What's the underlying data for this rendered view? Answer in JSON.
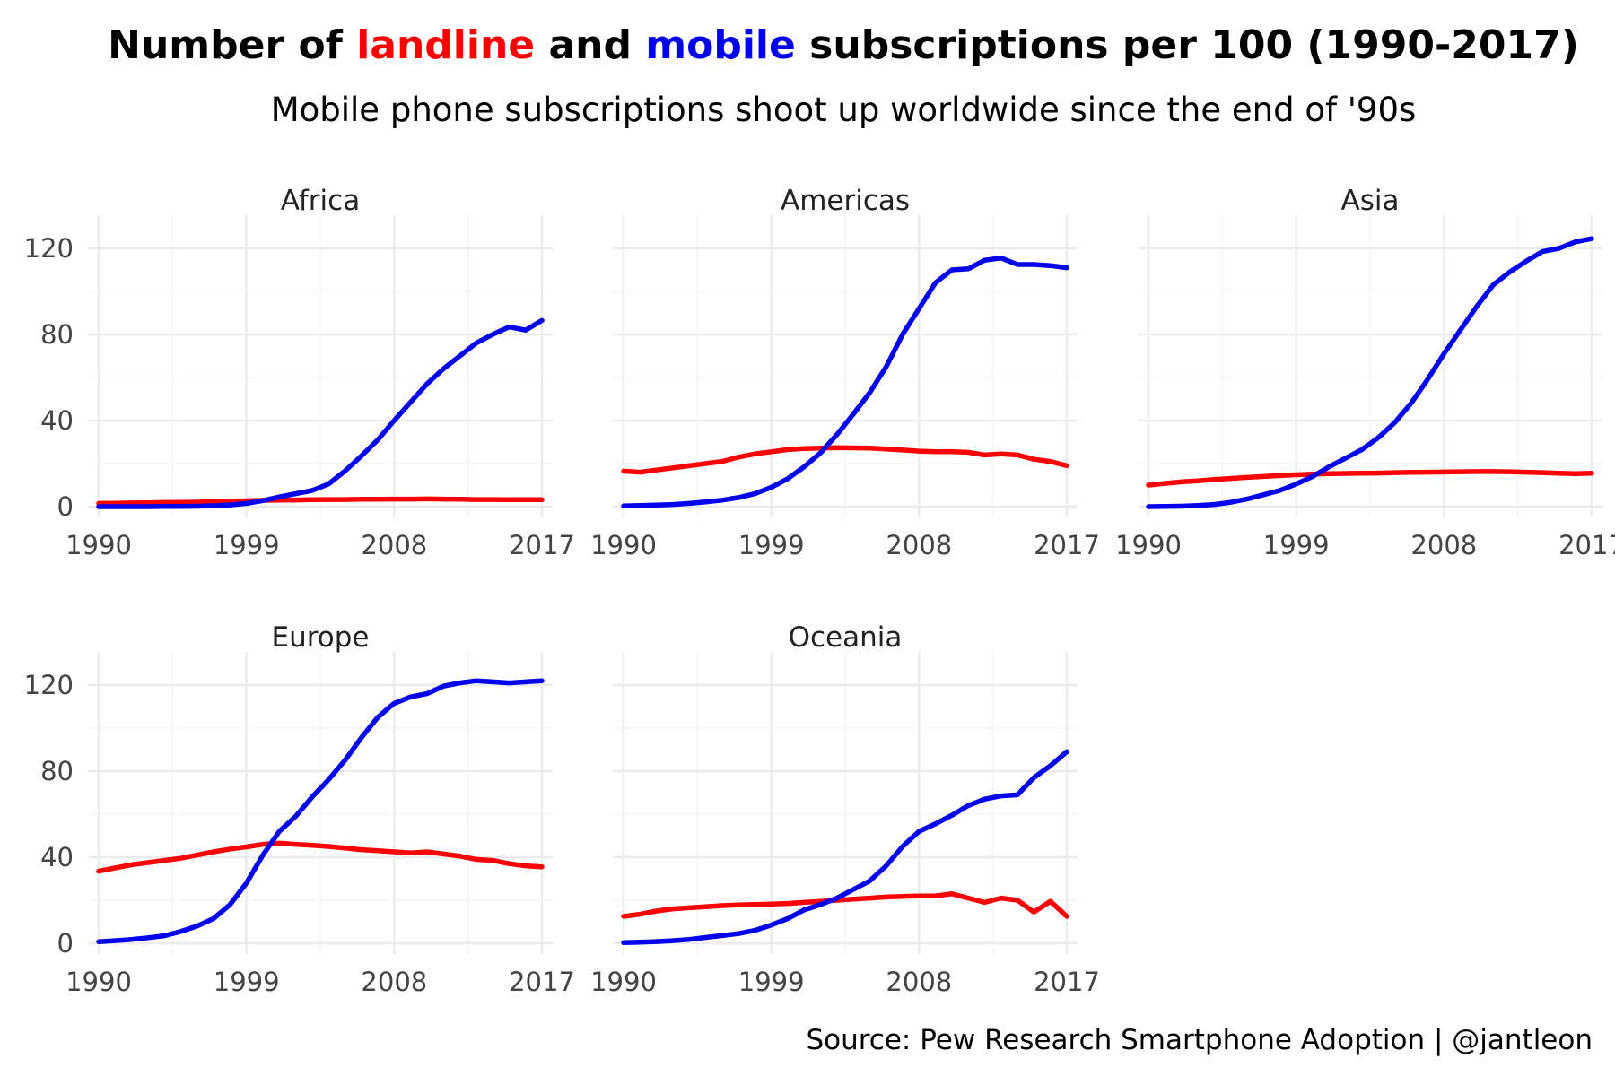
{
  "title": {
    "part1": "Number of ",
    "landline_word": "landline",
    "part2": " and ",
    "mobile_word": "mobile",
    "part3": " subscriptions per 100 (1990-2017)"
  },
  "subtitle": "Mobile phone subscriptions shoot up worldwide since the end of '90s",
  "caption": "Source: Pew Research Smartphone Adoption | @jantleon",
  "colors": {
    "landline": "#ff0000",
    "mobile": "#0000ee",
    "grid": "#ebebeb"
  },
  "chart_data": {
    "type": "line",
    "x_ticks": [
      "1990",
      "1999",
      "2008",
      "2017"
    ],
    "y_ticks": [
      "0",
      "40",
      "80",
      "120"
    ],
    "xlim": [
      1990,
      2017
    ],
    "ylim": [
      0,
      125
    ],
    "grid": true,
    "years": [
      1990,
      1991,
      1992,
      1993,
      1994,
      1995,
      1996,
      1997,
      1998,
      1999,
      2000,
      2001,
      2002,
      2003,
      2004,
      2005,
      2006,
      2007,
      2008,
      2009,
      2010,
      2011,
      2012,
      2013,
      2014,
      2015,
      2016,
      2017
    ],
    "facets": [
      {
        "region": "Africa",
        "series": [
          {
            "key": "landline",
            "values": [
              1.5,
              1.6,
              1.7,
              1.8,
              1.9,
              2.0,
              2.1,
              2.3,
              2.5,
              2.7,
              2.9,
              3.0,
              3.1,
              3.2,
              3.3,
              3.3,
              3.4,
              3.4,
              3.5,
              3.5,
              3.6,
              3.5,
              3.4,
              3.3,
              3.3,
              3.2,
              3.2,
              3.2
            ]
          },
          {
            "key": "mobile",
            "values": [
              0,
              0,
              0,
              0,
              0.1,
              0.1,
              0.2,
              0.4,
              0.8,
              1.5,
              2.8,
              4.5,
              6.0,
              7.5,
              10.5,
              16.5,
              23.5,
              31.0,
              40.0,
              48.5,
              57.0,
              64.0,
              70.0,
              76.0,
              80.0,
              83.5,
              82.0,
              86.5
            ]
          }
        ]
      },
      {
        "region": "Americas",
        "series": [
          {
            "key": "landline",
            "values": [
              16.5,
              16.0,
              17.0,
              18.0,
              19.0,
              20.0,
              21.0,
              23.0,
              24.5,
              25.5,
              26.5,
              27.0,
              27.2,
              27.4,
              27.3,
              27.2,
              26.8,
              26.3,
              25.8,
              25.5,
              25.6,
              25.2,
              24.0,
              24.5,
              24.0,
              22.0,
              21.0,
              19.0
            ]
          },
          {
            "key": "mobile",
            "values": [
              0.3,
              0.5,
              0.7,
              1.0,
              1.5,
              2.2,
              3.0,
              4.2,
              6.0,
              9.0,
              13.0,
              18.5,
              25.0,
              33.5,
              43.0,
              53.0,
              65.0,
              80.0,
              92.0,
              104.0,
              110.0,
              110.5,
              114.5,
              115.5,
              112.5,
              112.5,
              112.0,
              111.0
            ]
          }
        ]
      },
      {
        "region": "Asia",
        "series": [
          {
            "key": "landline",
            "values": [
              10.0,
              10.8,
              11.5,
              12.0,
              12.6,
              13.1,
              13.6,
              14.0,
              14.4,
              14.8,
              15.1,
              15.3,
              15.4,
              15.5,
              15.6,
              15.8,
              15.9,
              16.0,
              16.1,
              16.2,
              16.3,
              16.3,
              16.2,
              16.0,
              15.8,
              15.5,
              15.3,
              15.5
            ]
          },
          {
            "key": "mobile",
            "values": [
              0,
              0.1,
              0.2,
              0.5,
              1.0,
              2.0,
              3.5,
              5.5,
              7.5,
              10.5,
              14.0,
              18.5,
              22.5,
              26.5,
              32.0,
              39.0,
              48.0,
              59.0,
              71.0,
              82.0,
              93.0,
              103.0,
              109.0,
              114.0,
              118.5,
              120.0,
              123.0,
              124.5
            ]
          }
        ]
      },
      {
        "region": "Europe",
        "series": [
          {
            "key": "landline",
            "values": [
              33.5,
              35.0,
              36.5,
              37.5,
              38.5,
              39.5,
              41.0,
              42.5,
              43.8,
              44.8,
              46.0,
              46.5,
              46.0,
              45.5,
              45.0,
              44.3,
              43.5,
              43.0,
              42.5,
              42.0,
              42.5,
              41.5,
              40.5,
              39.0,
              38.5,
              37.0,
              36.0,
              35.5
            ]
          },
          {
            "key": "mobile",
            "values": [
              0.7,
              1.2,
              1.8,
              2.6,
              3.5,
              5.5,
              8.0,
              11.5,
              18.0,
              28.0,
              41.0,
              52.0,
              59.0,
              68.0,
              76.0,
              85.0,
              95.5,
              105.0,
              111.5,
              114.5,
              116.0,
              119.5,
              121.0,
              122.0,
              121.5,
              121.0,
              121.5,
              122.0
            ]
          }
        ]
      },
      {
        "region": "Oceania",
        "series": [
          {
            "key": "landline",
            "values": [
              12.5,
              13.5,
              15.0,
              16.0,
              16.5,
              17.0,
              17.5,
              17.8,
              18.0,
              18.2,
              18.5,
              19.0,
              19.5,
              20.0,
              20.5,
              21.0,
              21.5,
              21.8,
              22.0,
              22.0,
              23.0,
              21.0,
              19.0,
              21.0,
              20.0,
              14.5,
              19.5,
              12.5
            ]
          },
          {
            "key": "mobile",
            "values": [
              0.3,
              0.5,
              0.8,
              1.2,
              1.8,
              2.7,
              3.6,
              4.5,
              6.0,
              8.5,
              11.5,
              15.5,
              18.0,
              21.0,
              25.0,
              29.0,
              36.0,
              45.0,
              52.0,
              55.5,
              59.5,
              64.0,
              67.0,
              68.5,
              69.0,
              77.0,
              82.5,
              89.0
            ]
          }
        ]
      }
    ]
  }
}
